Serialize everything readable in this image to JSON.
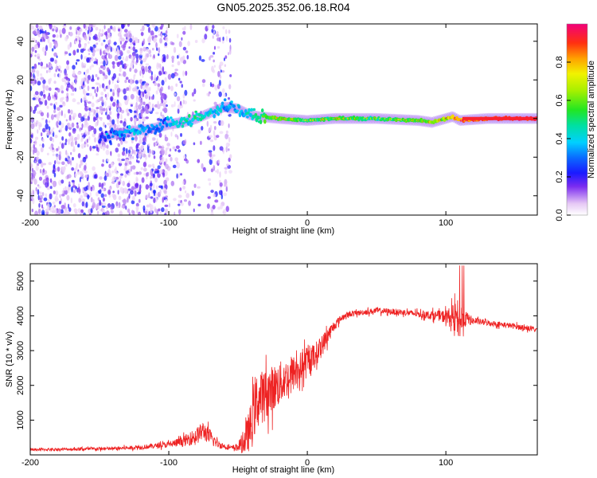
{
  "figure_title": "GN05.2025.352.06.18.R04",
  "chart_data": [
    {
      "type": "heatmap",
      "description_role": "spectrogram",
      "xlabel": "Height of straight line (km)",
      "ylabel": "Frequency (Hz)",
      "xlim": [
        -200,
        166
      ],
      "ylim": [
        -50,
        49
      ],
      "xticks": [
        -200,
        -100,
        0,
        100
      ],
      "yticks": [
        -40,
        -20,
        0,
        20,
        40
      ],
      "colorbar": {
        "label": "Normalized spectral amplitude",
        "range": [
          0,
          1
        ],
        "ticks": [
          0.0,
          0.2,
          0.4,
          0.6,
          0.8
        ],
        "tick_labels": [
          "0.0",
          "0.2",
          "0.4",
          "0.6",
          "0.8"
        ]
      },
      "ridge": {
        "x": [
          -150,
          -140,
          -130,
          -120,
          -110,
          -100,
          -90,
          -80,
          -70,
          -60,
          -50,
          -42,
          -35,
          -20,
          0,
          20,
          50,
          80,
          90,
          100,
          105,
          110,
          130,
          166
        ],
        "freq_hz": [
          -11,
          -8,
          -7,
          -6,
          -5,
          -3,
          -2,
          0,
          3,
          6,
          5,
          2,
          1,
          0,
          -1,
          0,
          0,
          -1,
          -2,
          0,
          1,
          -1,
          0,
          0
        ],
        "amplitude": [
          0.2,
          0.3,
          0.35,
          0.35,
          0.3,
          0.35,
          0.45,
          0.45,
          0.4,
          0.35,
          0.35,
          0.4,
          0.5,
          0.6,
          0.5,
          0.55,
          0.5,
          0.55,
          0.6,
          0.65,
          0.75,
          0.8,
          0.9,
          0.95
        ]
      }
    },
    {
      "type": "line",
      "xlabel": "Height of straight line (km)",
      "ylabel": "SNR (10 * v/v)",
      "xlim": [
        -200,
        166
      ],
      "ylim": [
        0,
        5500
      ],
      "xticks": [
        -200,
        -100,
        0,
        100
      ],
      "yticks": [
        1000,
        2000,
        3000,
        4000,
        5000
      ],
      "color": "#ee2222",
      "series": [
        {
          "name": "SNR",
          "x": [
            -200,
            -180,
            -160,
            -140,
            -120,
            -110,
            -100,
            -90,
            -80,
            -75,
            -70,
            -65,
            -60,
            -55,
            -50,
            -45,
            -40,
            -38,
            -35,
            -30,
            -25,
            -20,
            -15,
            -10,
            -5,
            0,
            5,
            10,
            15,
            20,
            25,
            30,
            40,
            50,
            60,
            70,
            80,
            90,
            95,
            100,
            105,
            108,
            110,
            112,
            115,
            120,
            130,
            140,
            150,
            166
          ],
          "mean": [
            150,
            160,
            170,
            180,
            220,
            260,
            300,
            380,
            550,
            700,
            500,
            320,
            250,
            200,
            230,
            400,
            900,
            1400,
            1600,
            1750,
            1900,
            2050,
            2200,
            2350,
            2500,
            2650,
            2850,
            3100,
            3450,
            3750,
            3950,
            4050,
            4100,
            4150,
            4120,
            4100,
            4050,
            4020,
            4000,
            3980,
            3950,
            3950,
            3900,
            3950,
            3920,
            3850,
            3800,
            3750,
            3700,
            3600
          ],
          "noise": [
            50,
            50,
            60,
            60,
            80,
            90,
            110,
            180,
            300,
            350,
            280,
            150,
            100,
            80,
            150,
            500,
            900,
            1100,
            1000,
            900,
            850,
            800,
            700,
            650,
            600,
            550,
            450,
            400,
            300,
            180,
            120,
            100,
            100,
            110,
            110,
            110,
            120,
            160,
            180,
            250,
            450,
            600,
            800,
            500,
            250,
            120,
            100,
            100,
            100,
            100
          ]
        }
      ]
    }
  ]
}
